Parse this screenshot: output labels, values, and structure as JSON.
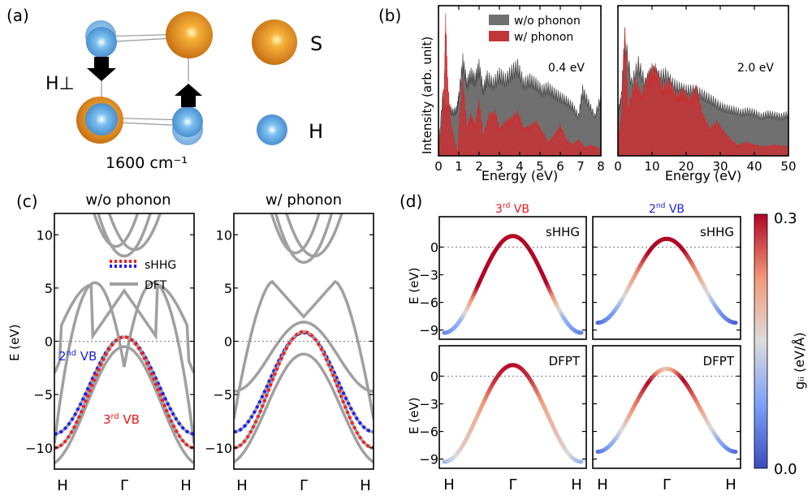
{
  "panel_labels": {
    "a": "(a)",
    "b": "(b)",
    "c": "(c)",
    "d": "(d)"
  },
  "panel_a": {
    "mode_label": "H⊥",
    "frequency": "1600 cm⁻¹",
    "legend": [
      {
        "atom": "S",
        "color": "#e88a1a"
      },
      {
        "atom": "H",
        "color": "#5aa3e0"
      }
    ]
  },
  "chart_data": [
    {
      "id": "b-left",
      "type": "area",
      "title": "",
      "annotation": "0.4 eV",
      "xlabel": "Energy (eV)",
      "ylabel": "Intensity (arb. unit)",
      "xlim": [
        0,
        8
      ],
      "xticks": [
        "0",
        "1",
        "2",
        "3",
        "4",
        "5",
        "6",
        "7",
        "8"
      ],
      "legend": {
        "placement": "top-right",
        "entries": [
          {
            "name": "w/o phonon",
            "color": "#707070"
          },
          {
            "name": "w/ phonon",
            "color": "#c0363a"
          }
        ]
      },
      "series": [
        {
          "name": "w/o phonon",
          "x": [
            0,
            0.2,
            0.35,
            0.5,
            0.7,
            0.9,
            1.0,
            1.2,
            1.4,
            1.6,
            1.8,
            2.0,
            2.2,
            2.4,
            2.7,
            3.0,
            3.3,
            3.6,
            3.9,
            4.2,
            4.5,
            4.8,
            5.1,
            5.4,
            5.7,
            6.0,
            6.3,
            6.6,
            6.9,
            7.1,
            7.4,
            7.7,
            8.0
          ],
          "y": [
            0.05,
            0.45,
            0.35,
            0.38,
            0.33,
            0.35,
            0.45,
            0.72,
            0.55,
            0.62,
            0.58,
            0.68,
            0.5,
            0.6,
            0.55,
            0.62,
            0.58,
            0.64,
            0.68,
            0.55,
            0.58,
            0.55,
            0.5,
            0.52,
            0.48,
            0.45,
            0.42,
            0.38,
            0.3,
            0.5,
            0.4,
            0.3,
            0.45
          ]
        },
        {
          "name": "w/ phonon",
          "x": [
            0,
            0.15,
            0.3,
            0.35,
            0.45,
            0.6,
            0.8,
            0.95,
            1.05,
            1.2,
            1.4,
            1.6,
            1.8,
            2.0,
            2.2,
            2.5,
            2.8,
            3.0,
            3.3,
            3.6,
            3.9,
            4.2,
            4.5,
            4.8,
            5.1,
            5.4,
            5.7,
            6.0,
            6.3,
            6.6,
            6.9,
            7.2,
            7.5,
            8.0
          ],
          "y": [
            0.05,
            0.2,
            0.6,
            1.0,
            0.55,
            0.25,
            0.1,
            0.02,
            0.3,
            0.55,
            0.2,
            0.3,
            0.22,
            0.4,
            0.15,
            0.3,
            0.32,
            0.2,
            0.25,
            0.28,
            0.32,
            0.2,
            0.22,
            0.25,
            0.18,
            0.1,
            0.15,
            0.22,
            0.12,
            0.08,
            0.12,
            0.06,
            0.08,
            0.05
          ]
        }
      ]
    },
    {
      "id": "b-right",
      "type": "area",
      "annotation": "2.0 eV",
      "xlabel": "Energy (eV)",
      "xlim": [
        0,
        50
      ],
      "xticks": [
        "0",
        "10",
        "20",
        "30",
        "40",
        "50"
      ],
      "series": [
        {
          "name": "w/o phonon",
          "x": [
            0,
            1,
            2,
            4,
            6,
            8,
            10,
            12,
            14,
            16,
            18,
            20,
            22,
            24,
            26,
            28,
            30,
            32,
            34,
            36,
            38,
            40,
            42,
            44,
            46,
            48,
            50
          ],
          "y": [
            0.32,
            0.45,
            0.9,
            0.55,
            0.7,
            0.55,
            0.65,
            0.6,
            0.62,
            0.55,
            0.52,
            0.5,
            0.5,
            0.48,
            0.45,
            0.42,
            0.38,
            0.36,
            0.35,
            0.33,
            0.34,
            0.33,
            0.3,
            0.32,
            0.31,
            0.3,
            0.32
          ]
        },
        {
          "name": "w/ phonon",
          "x": [
            0,
            1,
            2,
            3,
            5,
            7,
            9,
            11,
            13,
            15,
            17,
            19,
            21,
            23,
            25,
            27,
            29,
            31,
            33,
            35,
            38,
            40,
            43,
            46,
            50
          ],
          "y": [
            0.1,
            0.3,
            0.9,
            0.35,
            0.55,
            0.45,
            0.6,
            0.65,
            0.5,
            0.55,
            0.45,
            0.48,
            0.42,
            0.5,
            0.3,
            0.2,
            0.25,
            0.18,
            0.12,
            0.08,
            0.1,
            0.08,
            0.07,
            0.08,
            0.07
          ]
        }
      ]
    },
    {
      "id": "c-left",
      "type": "line",
      "title": "w/o phonon",
      "ylabel": "E (eV)",
      "ylim": [
        -12,
        12
      ],
      "yticks": [
        "−10",
        "−5",
        "0",
        "5",
        "10"
      ],
      "xticks": [
        "H",
        "Γ",
        "H"
      ],
      "legend": {
        "placement": "upper-center",
        "entries": [
          {
            "name": "sHHG",
            "style": "dotted red/blue"
          },
          {
            "name": "DFT",
            "style": "solid gray"
          }
        ]
      },
      "annotations": [
        {
          "text": "2nd VB",
          "color": "#1f22d8"
        },
        {
          "text": "3rd VB",
          "color": "#e8161a"
        }
      ],
      "bands": {
        "vb2": {
          "gamma": 0.4,
          "H": -8.7
        },
        "vb3": {
          "gamma": 0.4,
          "H": -10.0
        },
        "low": {
          "gamma": -0.5,
          "H": -11.6
        },
        "cb_min": 8.0
      }
    },
    {
      "id": "c-right",
      "type": "line",
      "title": "w/ phonon",
      "ylim": [
        -12,
        12
      ],
      "yticks": [
        "−10",
        "−5",
        "0",
        "5",
        "10"
      ],
      "xticks": [
        "H",
        "Γ",
        "H"
      ],
      "bands": {
        "vb2": {
          "gamma": 0.8,
          "H": -8.5
        },
        "vb3": {
          "gamma": 0.9,
          "H": -10.0
        },
        "low": {
          "gamma": -1.2,
          "H": -11.5
        },
        "upper": {
          "gamma": 1.8,
          "H": -4.7
        },
        "cb": {
          "gamma": 2.3,
          "peak": 5.6,
          "H": -7.3
        },
        "cb_min": 7.4
      }
    },
    {
      "id": "d-panels",
      "type": "line",
      "colorbar": {
        "label": "gᵢᵢ (eV/Å)",
        "min": "0.0",
        "max": "0.3",
        "cmap": "coolwarm"
      },
      "column_titles": [
        {
          "text": "3rd VB",
          "color": "#e8161a"
        },
        {
          "text": "2nd VB",
          "color": "#1f22d8"
        }
      ],
      "row_labels": [
        "sHHG",
        "DFPT"
      ],
      "ylabel": "E (eV)",
      "yticks": [
        "0",
        "−3",
        "−6",
        "−9"
      ],
      "xticks": [
        "H",
        "Γ",
        "H"
      ],
      "panels": [
        {
          "name": "3rd VB sHHG",
          "gamma": 1.2,
          "H": -9.3,
          "g": [
            0.05,
            0.1,
            0.3,
            0.3,
            0.3,
            0.3,
            0.3,
            0.1,
            0.05
          ]
        },
        {
          "name": "2nd VB sHHG",
          "gamma": 0.9,
          "H": -8.2,
          "g": [
            0.02,
            0.08,
            0.2,
            0.3,
            0.3,
            0.3,
            0.2,
            0.08,
            0.02
          ]
        },
        {
          "name": "3rd VB DFPT",
          "gamma": 1.2,
          "H": -9.3,
          "g": [
            0.1,
            0.17,
            0.2,
            0.28,
            0.3,
            0.28,
            0.2,
            0.17,
            0.1
          ]
        },
        {
          "name": "2nd VB DFPT",
          "gamma": 0.8,
          "H": -8.2,
          "g": [
            0.03,
            0.1,
            0.22,
            0.3,
            0.17,
            0.3,
            0.22,
            0.1,
            0.03
          ]
        }
      ]
    }
  ]
}
